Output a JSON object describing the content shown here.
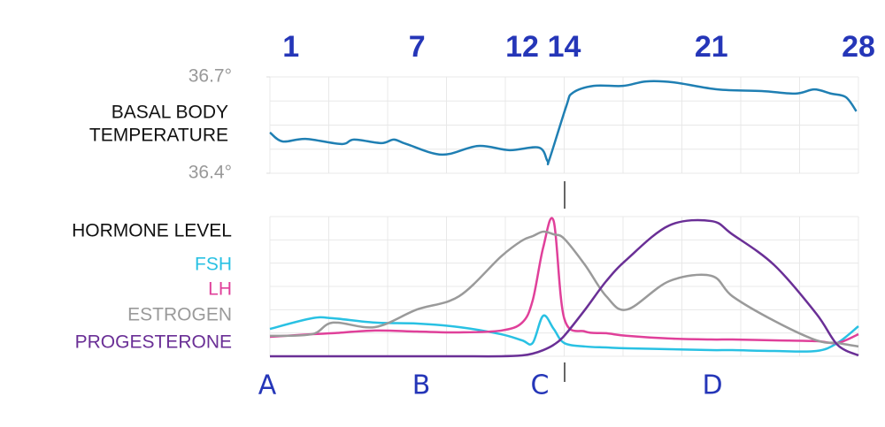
{
  "chart_data": [
    {
      "type": "line",
      "ylabel": [
        "BASAL BODY",
        "TEMPERATURE"
      ],
      "xlim": [
        0,
        28
      ],
      "xticks": [
        1,
        7,
        12,
        14,
        21,
        28
      ],
      "ylim": [
        36.4,
        36.7
      ],
      "yticks": [
        {
          "value": 36.4,
          "label": "36.4°"
        },
        {
          "value": 36.7,
          "label": "36.7°"
        }
      ],
      "x": [
        0,
        0.6,
        1.7,
        3.4,
        4,
        5.3,
        5.9,
        6.5,
        8.2,
        9.9,
        11.4,
        12.8,
        13.2,
        13.3,
        14.1,
        14.4,
        15.4,
        16.8,
        17.9,
        19.2,
        21.3,
        23.4,
        25,
        25.9,
        26.7,
        27.4,
        27.9
      ],
      "series": [
        {
          "color": "#1f7fb3",
          "values": [
            36.527,
            36.499,
            36.507,
            36.491,
            36.505,
            36.494,
            36.505,
            36.491,
            36.458,
            36.485,
            36.472,
            36.48,
            36.439,
            36.444,
            36.609,
            36.65,
            36.672,
            36.672,
            36.686,
            36.683,
            36.661,
            36.656,
            36.648,
            36.661,
            36.648,
            36.637,
            36.593
          ]
        }
      ]
    },
    {
      "type": "line",
      "title": "HORMONE LEVEL",
      "xlim": [
        0,
        28
      ],
      "ylim": [
        0,
        100
      ],
      "annotations": [
        "A",
        "B",
        "C",
        "D"
      ],
      "x": [
        0,
        2,
        3,
        5,
        7,
        9,
        11,
        12,
        12.5,
        13,
        13.5,
        14,
        15,
        16,
        17,
        19,
        21,
        22,
        24,
        26,
        27,
        28
      ],
      "series": [
        {
          "name": "FSH",
          "color": "#29c1e3",
          "values": [
            19.6,
            27.2,
            27.2,
            24.1,
            23.4,
            20.9,
            15.8,
            11.4,
            9.5,
            29,
            19.6,
            9.5,
            7,
            6.3,
            5.7,
            5.1,
            4.4,
            4.4,
            3.8,
            3.8,
            9.5,
            21.5
          ]
        },
        {
          "name": "LH",
          "color": "#e0409a",
          "values": [
            13.9,
            15.8,
            16.5,
            18.4,
            17.7,
            17.1,
            18.4,
            24.1,
            39.9,
            77.8,
            96.8,
            27.2,
            17.7,
            16.5,
            14.6,
            12.7,
            12,
            12,
            11.4,
            10.8,
            9.5,
            15.8
          ]
        },
        {
          "name": "ESTROGEN",
          "color": "#9a9a9a",
          "values": [
            14.6,
            15.8,
            24.1,
            20.9,
            33.5,
            43,
            71.5,
            82.9,
            86,
            89.2,
            87.3,
            84.2,
            65.2,
            43,
            33.5,
            53.8,
            57.6,
            43,
            25.3,
            11.4,
            9.5,
            7
          ]
        },
        {
          "name": "PROGESTERONE",
          "color": "#6a2f96",
          "values": [
            0,
            0,
            0,
            0,
            0,
            0,
            0,
            0.6,
            1.9,
            4.4,
            8.2,
            14.6,
            33.5,
            53.8,
            69.6,
            93.7,
            96.8,
            87.3,
            65.2,
            30.4,
            8.2,
            0.6
          ]
        }
      ]
    }
  ]
}
